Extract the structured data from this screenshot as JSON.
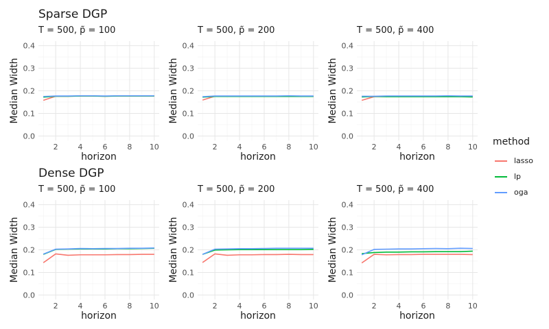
{
  "row_titles": [
    "Sparse DGP",
    "Dense DGP"
  ],
  "legend": {
    "title": "method",
    "items": [
      {
        "label": "lasso",
        "color": "#F8766D"
      },
      {
        "label": "lp",
        "color": "#00BA38"
      },
      {
        "label": "oga",
        "color": "#619CFF"
      }
    ]
  },
  "panel_titles": [
    "T = 500, p̃ = 100",
    "T = 500, p̃ = 200",
    "T = 500, p̃ = 400",
    "T = 500, p̃ = 100",
    "T = 500, p̃ = 200",
    "T = 500, p̃ = 400"
  ],
  "chart_data": {
    "type": "line",
    "xlabel": "horizon",
    "ylabel": "Median Width",
    "xlim": [
      0.6,
      10.4
    ],
    "ylim": [
      -0.02,
      0.42
    ],
    "xticks": [
      2,
      4,
      6,
      8,
      10
    ],
    "yticks": [
      0.0,
      0.1,
      0.2,
      0.3,
      0.4
    ],
    "ytick_labels": [
      "0.0",
      "0.1",
      "0.2",
      "0.3",
      "0.4"
    ],
    "x": [
      1,
      2,
      3,
      4,
      5,
      6,
      7,
      8,
      9,
      10
    ],
    "panels": [
      {
        "row": "Sparse DGP",
        "title": "T = 500, p̃ = 100",
        "series": [
          {
            "name": "lasso",
            "values": [
              0.158,
              0.176,
              0.176,
              0.177,
              0.177,
              0.176,
              0.177,
              0.177,
              0.177,
              0.177
            ]
          },
          {
            "name": "lp",
            "values": [
              0.172,
              0.176,
              0.176,
              0.177,
              0.177,
              0.176,
              0.177,
              0.177,
              0.177,
              0.177
            ]
          },
          {
            "name": "oga",
            "values": [
              0.175,
              0.177,
              0.177,
              0.178,
              0.178,
              0.177,
              0.178,
              0.178,
              0.178,
              0.178
            ]
          }
        ]
      },
      {
        "row": "Sparse DGP",
        "title": "T = 500, p̃ = 200",
        "series": [
          {
            "name": "lasso",
            "values": [
              0.159,
              0.176,
              0.175,
              0.176,
              0.176,
              0.176,
              0.176,
              0.176,
              0.176,
              0.176
            ]
          },
          {
            "name": "lp",
            "values": [
              0.172,
              0.175,
              0.175,
              0.175,
              0.175,
              0.175,
              0.175,
              0.175,
              0.175,
              0.175
            ]
          },
          {
            "name": "oga",
            "values": [
              0.174,
              0.177,
              0.177,
              0.177,
              0.177,
              0.177,
              0.177,
              0.178,
              0.177,
              0.177
            ]
          }
        ]
      },
      {
        "row": "Sparse DGP",
        "title": "T = 500, p̃ = 400",
        "series": [
          {
            "name": "lasso",
            "values": [
              0.158,
              0.174,
              0.175,
              0.175,
              0.175,
              0.175,
              0.175,
              0.175,
              0.175,
              0.175
            ]
          },
          {
            "name": "lp",
            "values": [
              0.173,
              0.175,
              0.174,
              0.174,
              0.174,
              0.174,
              0.174,
              0.174,
              0.174,
              0.173
            ]
          },
          {
            "name": "oga",
            "values": [
              0.176,
              0.176,
              0.177,
              0.177,
              0.177,
              0.177,
              0.177,
              0.178,
              0.177,
              0.177
            ]
          }
        ]
      },
      {
        "row": "Dense DGP",
        "title": "T = 500, p̃ = 100",
        "series": [
          {
            "name": "lasso",
            "values": [
              0.143,
              0.182,
              0.176,
              0.178,
              0.178,
              0.178,
              0.179,
              0.179,
              0.18,
              0.18
            ]
          },
          {
            "name": "lp",
            "values": [
              0.18,
              0.202,
              0.203,
              0.204,
              0.204,
              0.204,
              0.205,
              0.205,
              0.206,
              0.207
            ]
          },
          {
            "name": "oga",
            "values": [
              0.181,
              0.203,
              0.204,
              0.206,
              0.205,
              0.206,
              0.206,
              0.207,
              0.207,
              0.208
            ]
          }
        ]
      },
      {
        "row": "Dense DGP",
        "title": "T = 500, p̃ = 200",
        "series": [
          {
            "name": "lasso",
            "values": [
              0.144,
              0.182,
              0.176,
              0.178,
              0.178,
              0.179,
              0.179,
              0.18,
              0.179,
              0.179
            ]
          },
          {
            "name": "lp",
            "values": [
              0.18,
              0.199,
              0.2,
              0.201,
              0.201,
              0.201,
              0.201,
              0.201,
              0.201,
              0.202
            ]
          },
          {
            "name": "oga",
            "values": [
              0.18,
              0.203,
              0.204,
              0.205,
              0.205,
              0.206,
              0.207,
              0.207,
              0.207,
              0.207
            ]
          }
        ]
      },
      {
        "row": "Dense DGP",
        "title": "T = 500, p̃ = 400",
        "series": [
          {
            "name": "lasso",
            "values": [
              0.142,
              0.18,
              0.178,
              0.179,
              0.179,
              0.18,
              0.18,
              0.18,
              0.18,
              0.179
            ]
          },
          {
            "name": "lp",
            "values": [
              0.183,
              0.188,
              0.19,
              0.19,
              0.191,
              0.191,
              0.192,
              0.192,
              0.192,
              0.194
            ]
          },
          {
            "name": "oga",
            "values": [
              0.178,
              0.202,
              0.203,
              0.204,
              0.204,
              0.205,
              0.206,
              0.205,
              0.207,
              0.206
            ]
          }
        ]
      }
    ]
  }
}
